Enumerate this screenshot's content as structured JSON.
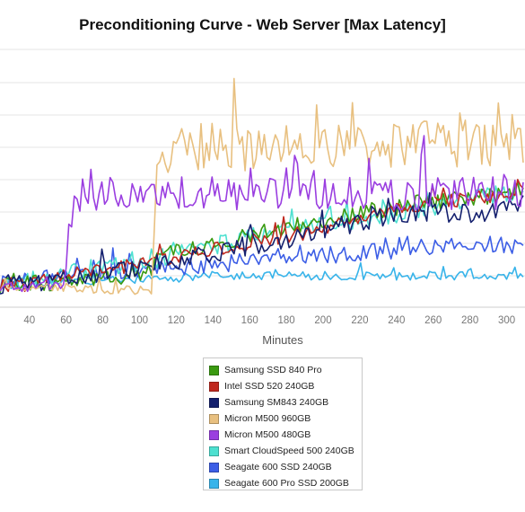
{
  "chart_data": {
    "type": "line",
    "title": "Preconditioning Curve - Web Server [Max Latency]",
    "xlabel": "Minutes",
    "ylabel": "",
    "x_ticks": [
      40,
      60,
      80,
      100,
      120,
      140,
      160,
      180,
      200,
      220,
      240,
      260,
      280,
      300
    ],
    "xlim": [
      24,
      310
    ],
    "ylim": [
      0,
      90
    ],
    "grid": true,
    "legend_position": "bottom",
    "series": [
      {
        "name": "Samsung SSD 840 Pro",
        "color": "#3a9a10",
        "points": [
          [
            24,
            8
          ],
          [
            40,
            8
          ],
          [
            60,
            9
          ],
          [
            80,
            10
          ],
          [
            100,
            12
          ],
          [
            110,
            15
          ],
          [
            120,
            20
          ],
          [
            140,
            22
          ],
          [
            160,
            25
          ],
          [
            180,
            28
          ],
          [
            200,
            30
          ],
          [
            220,
            33
          ],
          [
            240,
            35
          ],
          [
            260,
            37
          ],
          [
            280,
            38
          ],
          [
            300,
            39
          ],
          [
            310,
            40
          ]
        ]
      },
      {
        "name": "Intel SSD 520 240GB",
        "color": "#c0281e",
        "points": [
          [
            24,
            8
          ],
          [
            40,
            8
          ],
          [
            60,
            12
          ],
          [
            80,
            13
          ],
          [
            100,
            15
          ],
          [
            120,
            17
          ],
          [
            140,
            20
          ],
          [
            160,
            22
          ],
          [
            180,
            25
          ],
          [
            200,
            27
          ],
          [
            220,
            31
          ],
          [
            240,
            34
          ],
          [
            260,
            36
          ],
          [
            280,
            38
          ],
          [
            300,
            39
          ],
          [
            310,
            40
          ]
        ]
      },
      {
        "name": "Samsung SM843 240GB",
        "color": "#14206e",
        "points": [
          [
            24,
            8
          ],
          [
            40,
            8
          ],
          [
            60,
            10
          ],
          [
            80,
            12
          ],
          [
            100,
            14
          ],
          [
            120,
            16
          ],
          [
            140,
            19
          ],
          [
            160,
            21
          ],
          [
            180,
            24
          ],
          [
            200,
            27
          ],
          [
            220,
            30
          ],
          [
            240,
            32
          ],
          [
            260,
            33
          ],
          [
            280,
            33
          ],
          [
            300,
            34
          ],
          [
            310,
            36
          ]
        ]
      },
      {
        "name": "Micron M500 960GB",
        "color": "#e8c080",
        "points": [
          [
            24,
            7
          ],
          [
            40,
            7
          ],
          [
            60,
            7
          ],
          [
            80,
            6
          ],
          [
            100,
            6
          ],
          [
            106,
            6
          ],
          [
            110,
            52
          ],
          [
            120,
            55
          ],
          [
            140,
            55
          ],
          [
            160,
            55
          ],
          [
            180,
            56
          ],
          [
            200,
            56
          ],
          [
            220,
            56
          ],
          [
            240,
            57
          ],
          [
            260,
            57
          ],
          [
            280,
            57
          ],
          [
            300,
            57
          ],
          [
            310,
            58
          ]
        ]
      },
      {
        "name": "Micron M500 480GB",
        "color": "#9a3ee0",
        "points": [
          [
            24,
            7
          ],
          [
            40,
            7
          ],
          [
            60,
            8
          ],
          [
            62,
            28
          ],
          [
            66,
            39
          ],
          [
            80,
            40
          ],
          [
            100,
            40
          ],
          [
            120,
            40
          ],
          [
            140,
            40
          ],
          [
            160,
            40
          ],
          [
            180,
            40
          ],
          [
            200,
            40
          ],
          [
            220,
            40
          ],
          [
            240,
            40
          ],
          [
            260,
            40
          ],
          [
            280,
            40
          ],
          [
            300,
            40
          ],
          [
            310,
            40
          ]
        ]
      },
      {
        "name": "Smart CloudSpeed 500 240GB",
        "color": "#4de0d0",
        "points": [
          [
            24,
            8
          ],
          [
            40,
            9
          ],
          [
            60,
            12
          ],
          [
            80,
            14
          ],
          [
            100,
            16
          ],
          [
            120,
            18
          ],
          [
            140,
            21
          ],
          [
            160,
            24
          ],
          [
            180,
            27
          ],
          [
            200,
            29
          ],
          [
            220,
            31
          ],
          [
            240,
            33
          ],
          [
            260,
            35
          ],
          [
            280,
            37
          ],
          [
            300,
            40
          ],
          [
            310,
            42
          ]
        ]
      },
      {
        "name": "Seagate 600 SSD 240GB",
        "color": "#3c5ee6",
        "points": [
          [
            24,
            8
          ],
          [
            40,
            9
          ],
          [
            60,
            11
          ],
          [
            80,
            12
          ],
          [
            100,
            13
          ],
          [
            120,
            14
          ],
          [
            140,
            15
          ],
          [
            160,
            16
          ],
          [
            180,
            17
          ],
          [
            200,
            18
          ],
          [
            220,
            19
          ],
          [
            240,
            20
          ],
          [
            260,
            21
          ],
          [
            280,
            22
          ],
          [
            300,
            22
          ],
          [
            310,
            20
          ]
        ]
      },
      {
        "name": "Seagate 600 Pro SSD 200GB",
        "color": "#38b4ea",
        "points": [
          [
            24,
            8
          ],
          [
            40,
            8
          ],
          [
            60,
            9
          ],
          [
            80,
            9
          ],
          [
            100,
            10
          ],
          [
            120,
            10
          ],
          [
            140,
            11
          ],
          [
            160,
            11
          ],
          [
            180,
            11
          ],
          [
            200,
            11
          ],
          [
            220,
            11
          ],
          [
            240,
            11
          ],
          [
            260,
            11
          ],
          [
            280,
            11
          ],
          [
            300,
            11
          ],
          [
            310,
            11
          ]
        ]
      }
    ]
  }
}
